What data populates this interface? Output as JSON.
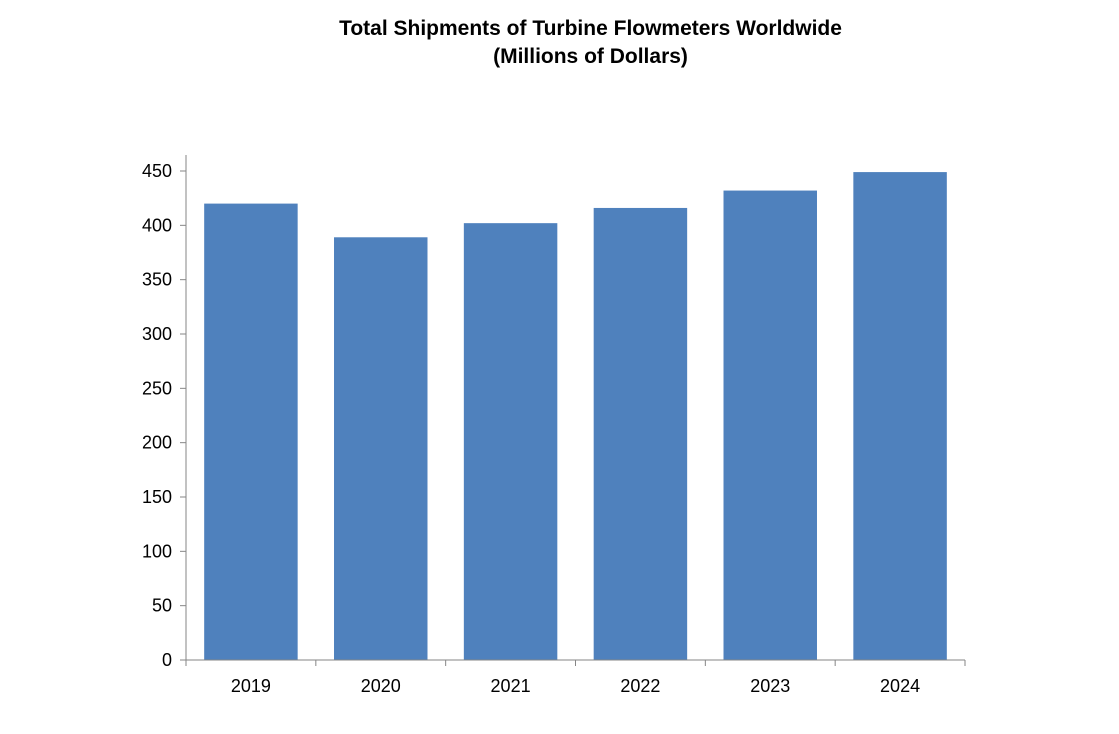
{
  "chart_data": {
    "type": "bar",
    "title": "Total Shipments of Turbine Flowmeters Worldwide",
    "subtitle": "(Millions of Dollars)",
    "categories": [
      "2019",
      "2020",
      "2021",
      "2022",
      "2023",
      "2024"
    ],
    "values": [
      420,
      389,
      402,
      416,
      432,
      449
    ],
    "xlabel": "",
    "ylabel": "",
    "ylim": [
      0,
      450
    ],
    "yticks": [
      0,
      50,
      100,
      150,
      200,
      250,
      300,
      350,
      400,
      450
    ],
    "grid": false,
    "legend": "none",
    "bar_color": "#4F81BD"
  }
}
